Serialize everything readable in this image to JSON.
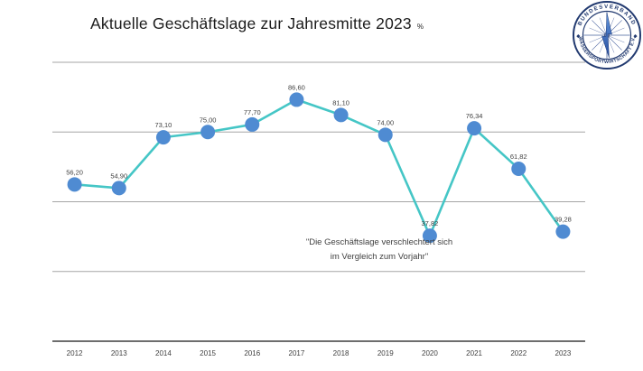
{
  "title": {
    "text": "Aktuelle Geschäftslage zur Jahresmitte 2023",
    "unit": "%"
  },
  "logo": {
    "top_text": "BUNDESVERBAND",
    "bottom_text": "WASSERSPORTWIRTSCHAFT E.V.",
    "separator_left": "◆",
    "separator_right": "◆",
    "ring_color": "#223a70",
    "needle_color_top": "#5f94dc",
    "needle_color_bottom": "#2a4f9f"
  },
  "annotation": {
    "line1": "\"Die Geschäftslage verschlechtert sich",
    "line2": "im Vergleich zum Vorjahr\""
  },
  "chart_data": {
    "type": "line",
    "title": "Aktuelle Geschäftslage zur Jahresmitte 2023",
    "xlabel": "",
    "ylabel": "%",
    "categories": [
      "2012",
      "2013",
      "2014",
      "2015",
      "2016",
      "2017",
      "2018",
      "2019",
      "2020",
      "2021",
      "2022",
      "2023"
    ],
    "values": [
      56.2,
      54.9,
      73.1,
      75.0,
      77.7,
      86.6,
      81.1,
      74.0,
      37.82,
      76.34,
      61.82,
      39.28
    ],
    "point_labels": [
      "56,20",
      "54,90",
      "73,10",
      "75,00",
      "77,70",
      "86,60",
      "81,10",
      "74,00",
      "37,82",
      "76,34",
      "61,82",
      "39,28"
    ],
    "ylim": [
      0,
      100
    ],
    "gridline_values": [
      25,
      50,
      75,
      100
    ],
    "grid": true,
    "legend": false,
    "line_color": "#45c6c6",
    "marker_color": "#4f8bd2"
  }
}
